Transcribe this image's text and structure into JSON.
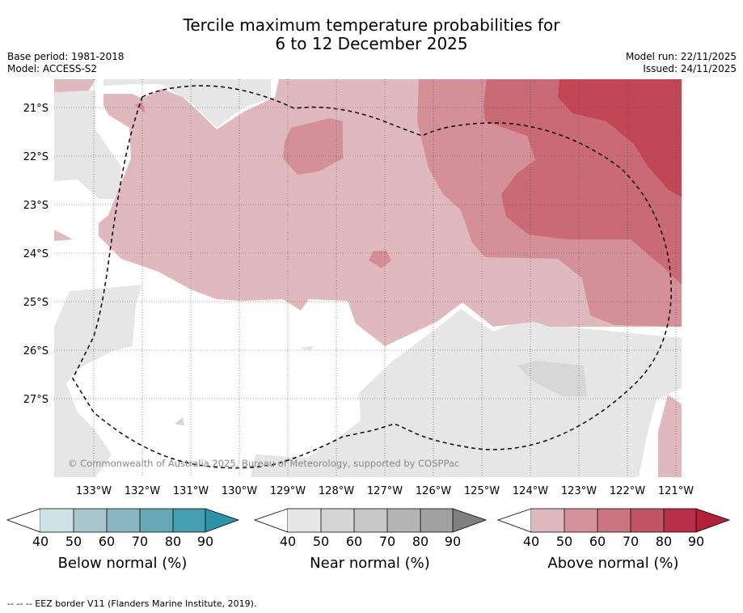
{
  "title": {
    "line1": "Tercile maximum temperature probabilities for",
    "line2": "6 to 12 December 2025"
  },
  "meta_left": {
    "base_period": "Base period: 1981-2018",
    "model": "Model: ACCESS-S2"
  },
  "meta_right": {
    "model_run": "Model run: 22/11/2025",
    "issued": "Issued: 24/11/2025"
  },
  "map": {
    "copyright": "© Commonwealth of Australia 2025, Bureau of Meteorology, supported by COSPPac",
    "lat_labels": [
      "21°S",
      "22°S",
      "23°S",
      "24°S",
      "25°S",
      "26°S",
      "27°S"
    ],
    "lon_labels": [
      "133°W",
      "132°W",
      "131°W",
      "130°W",
      "129°W",
      "128°W",
      "127°W",
      "126°W",
      "125°W",
      "124°W",
      "123°W",
      "122°W",
      "121°W"
    ],
    "colors": {
      "above40": "#e0b9bd",
      "above50": "#d58f98",
      "above60": "#c96a74",
      "above70": "#c14754",
      "near": "#e6e6e6",
      "near50": "#d7d7d7"
    }
  },
  "colorbars": [
    {
      "name": "below",
      "label": "Below normal (%)",
      "ticks": [
        "40",
        "50",
        "60",
        "70",
        "80",
        "90"
      ],
      "colors": [
        "#cde3e7",
        "#a7c7cd",
        "#88b6c1",
        "#68a8b6",
        "#44a0b1",
        "#2d93a8"
      ]
    },
    {
      "name": "near",
      "label": "Near normal (%)",
      "ticks": [
        "40",
        "50",
        "60",
        "70",
        "80",
        "90"
      ],
      "colors": [
        "#e6e6e6",
        "#d5d5d5",
        "#c7c7c7",
        "#b4b4b4",
        "#a1a1a1",
        "#808080"
      ]
    },
    {
      "name": "above",
      "label": "Above normal (%)",
      "ticks": [
        "40",
        "50",
        "60",
        "70",
        "80",
        "90"
      ],
      "colors": [
        "#e0b9bd",
        "#d5929b",
        "#cb7580",
        "#c25564",
        "#b72f47",
        "#b32038"
      ]
    }
  ],
  "footer": "-- -- -- EEZ border V11 (Flanders Marine Institute, 2019)."
}
